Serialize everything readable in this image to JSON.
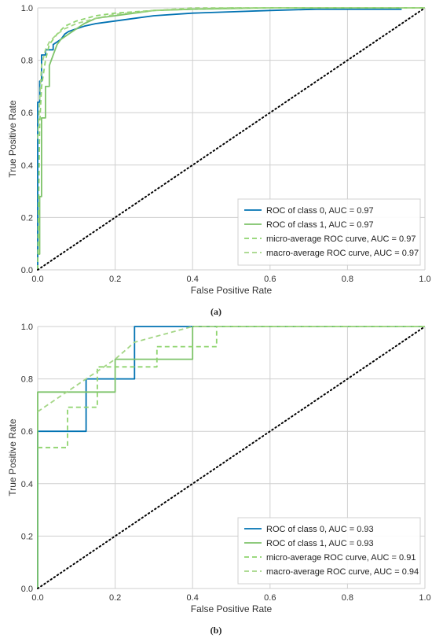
{
  "chart_data": [
    {
      "type": "line",
      "panel_label": "(a)",
      "xlabel": "False Positive Rate",
      "ylabel": "True Positive Rate",
      "xlim": [
        0,
        1
      ],
      "ylim": [
        0,
        1
      ],
      "xticks": [
        "0.0",
        "0.2",
        "0.4",
        "0.6",
        "0.8",
        "1.0"
      ],
      "yticks": [
        "0.0",
        "0.2",
        "0.4",
        "0.6",
        "0.8",
        "1.0"
      ],
      "grid": true,
      "legend_position": "lower-right",
      "series": [
        {
          "name": "ROC of class 0, AUC = 0.97",
          "color": "#0072b2",
          "dash": "solid",
          "x": [
            0,
            0,
            0.005,
            0.005,
            0.01,
            0.01,
            0.02,
            0.02,
            0.04,
            0.04,
            0.06,
            0.07,
            0.08,
            0.1,
            0.12,
            0.15,
            0.2,
            0.25,
            0.3,
            0.4,
            0.5,
            0.6,
            0.72,
            0.94
          ],
          "y": [
            0,
            0.64,
            0.64,
            0.72,
            0.72,
            0.82,
            0.82,
            0.84,
            0.84,
            0.86,
            0.88,
            0.9,
            0.91,
            0.92,
            0.93,
            0.94,
            0.95,
            0.96,
            0.97,
            0.98,
            0.985,
            0.99,
            0.995,
            0.995
          ]
        },
        {
          "name": "ROC of class 1, AUC = 0.97",
          "color": "#7ec36a",
          "dash": "solid",
          "x": [
            0,
            0.005,
            0.005,
            0.01,
            0.01,
            0.02,
            0.02,
            0.03,
            0.03,
            0.04,
            0.05,
            0.06,
            0.08,
            0.1,
            0.12,
            0.15,
            0.2,
            0.25,
            0.3,
            0.4,
            0.6,
            1.0
          ],
          "y": [
            0.06,
            0.06,
            0.28,
            0.28,
            0.58,
            0.58,
            0.7,
            0.7,
            0.78,
            0.82,
            0.86,
            0.88,
            0.9,
            0.92,
            0.94,
            0.96,
            0.97,
            0.98,
            0.99,
            0.995,
            1.0,
            1.0
          ]
        },
        {
          "name": "micro-average ROC curve, AUC = 0.97",
          "color": "#8fd46f",
          "dash": "6,4",
          "x": [
            0,
            0.005,
            0.01,
            0.02,
            0.03,
            0.05,
            0.07,
            0.1,
            0.15,
            0.2,
            0.3,
            0.5,
            1.0
          ],
          "y": [
            0,
            0.55,
            0.7,
            0.8,
            0.86,
            0.9,
            0.93,
            0.95,
            0.97,
            0.98,
            0.99,
            1.0,
            1.0
          ]
        },
        {
          "name": "macro-average ROC curve, AUC = 0.97",
          "color": "#a4d686",
          "dash": "6,4",
          "x": [
            0,
            0.01,
            0.02,
            0.03,
            0.05,
            0.07,
            0.1,
            0.15,
            0.2,
            0.3,
            0.4,
            1.0
          ],
          "y": [
            0.5,
            0.78,
            0.84,
            0.87,
            0.9,
            0.92,
            0.94,
            0.96,
            0.975,
            0.99,
            1.0,
            1.0
          ]
        },
        {
          "name": "",
          "color": "#000000",
          "dash": "dotted",
          "x": [
            0,
            1
          ],
          "y": [
            0,
            1
          ],
          "legend": false
        }
      ]
    },
    {
      "type": "line",
      "panel_label": "(b)",
      "xlabel": "False Positive Rate",
      "ylabel": "True Positive Rate",
      "xlim": [
        0,
        1
      ],
      "ylim": [
        0,
        1
      ],
      "xticks": [
        "0.0",
        "0.2",
        "0.4",
        "0.6",
        "0.8",
        "1.0"
      ],
      "yticks": [
        "0.0",
        "0.2",
        "0.4",
        "0.6",
        "0.8",
        "1.0"
      ],
      "grid": true,
      "legend_position": "lower-right",
      "series": [
        {
          "name": "ROC of class 0, AUC = 0.93",
          "color": "#0072b2",
          "dash": "solid",
          "x": [
            0,
            0,
            0.125,
            0.125,
            0.25,
            0.25,
            1.0
          ],
          "y": [
            0,
            0.6,
            0.6,
            0.8,
            0.8,
            1.0,
            1.0
          ]
        },
        {
          "name": "ROC of class 1, AUC = 0.93",
          "color": "#7ec36a",
          "dash": "solid",
          "x": [
            0,
            0,
            0.2,
            0.2,
            0.4,
            0.4,
            1.0
          ],
          "y": [
            0,
            0.75,
            0.75,
            0.875,
            0.875,
            1.0,
            1.0
          ]
        },
        {
          "name": "micro-average ROC curve, AUC = 0.91",
          "color": "#8fd46f",
          "dash": "6,4",
          "x": [
            0,
            0.077,
            0.077,
            0.154,
            0.154,
            0.308,
            0.308,
            0.462,
            0.462,
            1.0
          ],
          "y": [
            0.538,
            0.538,
            0.692,
            0.692,
            0.846,
            0.846,
            0.923,
            0.923,
            1.0,
            1.0
          ]
        },
        {
          "name": "macro-average ROC curve, AUC = 0.94",
          "color": "#a4d686",
          "dash": "6,4",
          "x": [
            0,
            0.125,
            0.2,
            0.25,
            0.4,
            1.0
          ],
          "y": [
            0.675,
            0.8,
            0.875,
            0.94,
            1.0,
            1.0
          ]
        },
        {
          "name": "",
          "color": "#000000",
          "dash": "dotted",
          "x": [
            0,
            1
          ],
          "y": [
            0,
            1
          ],
          "legend": false
        }
      ]
    }
  ]
}
